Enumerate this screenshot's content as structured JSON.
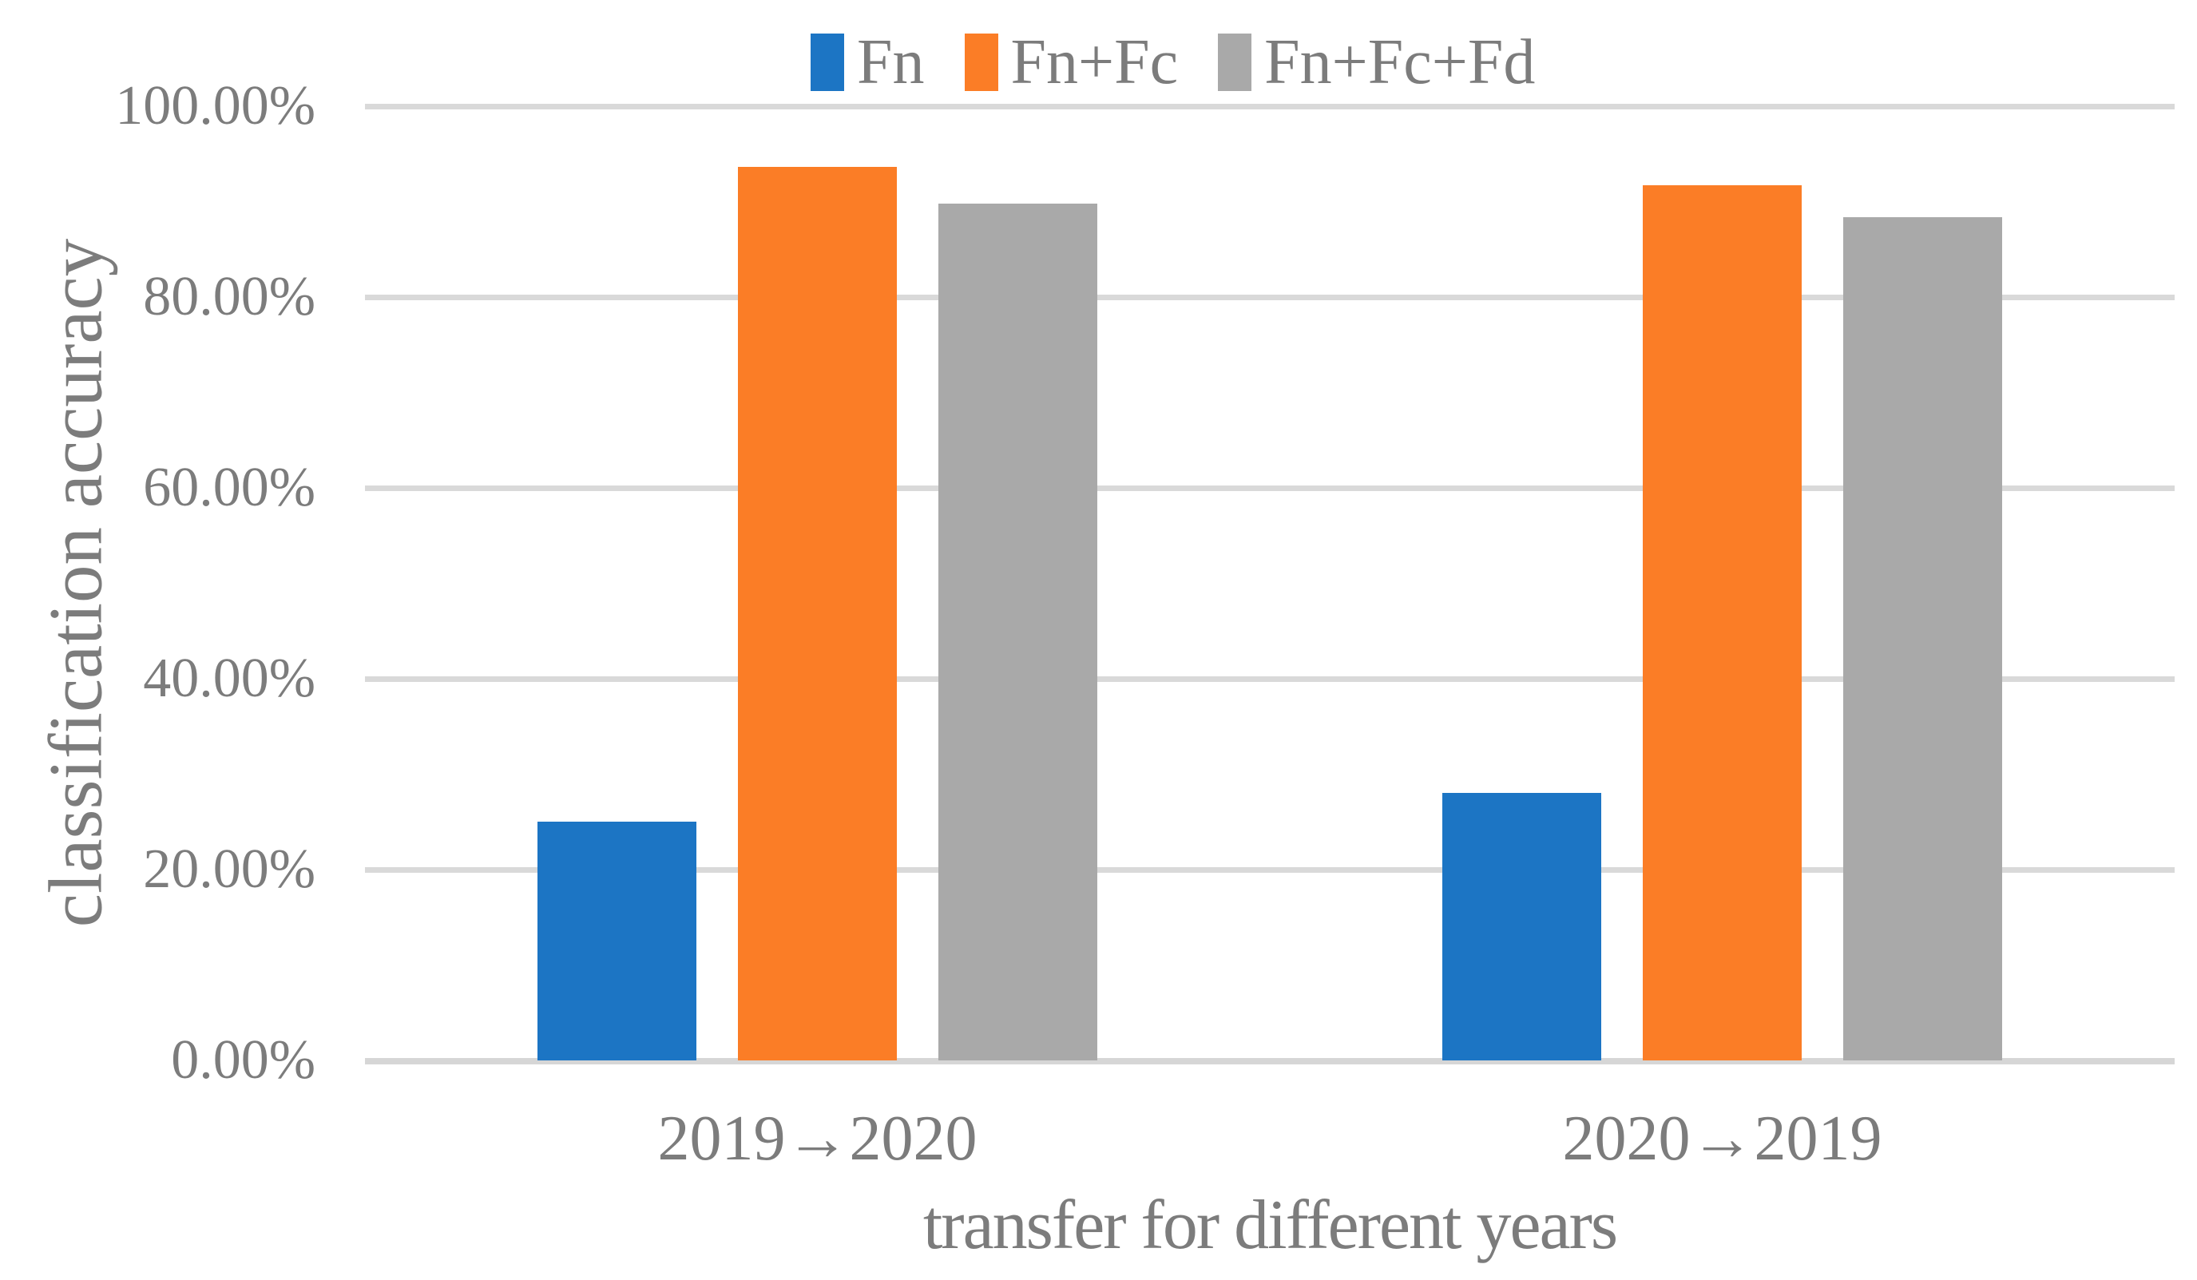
{
  "chart_data": {
    "type": "bar",
    "title": "",
    "categories": [
      "2019→2020",
      "2020→2019"
    ],
    "series": [
      {
        "name": "Fn",
        "color": "#1c75c4",
        "values": [
          25.0,
          28.0
        ]
      },
      {
        "name": "Fn+Fc",
        "color": "#fb7d26",
        "values": [
          93.6,
          91.7
        ]
      },
      {
        "name": "Fn+Fc+Fd",
        "color": "#a9a9a9",
        "values": [
          89.8,
          88.4
        ]
      }
    ],
    "xlabel": "transfer for different years",
    "ylabel": "classification accuracy",
    "ylim": [
      0,
      100
    ],
    "ytick_step": 20,
    "yticks": [
      {
        "value": 100,
        "label": "100.00%"
      },
      {
        "value": 80,
        "label": "80.00%"
      },
      {
        "value": 60,
        "label": "60.00%"
      },
      {
        "value": 40,
        "label": "40.00%"
      },
      {
        "value": 20,
        "label": "20.00%"
      },
      {
        "value": 0,
        "label": "0.00%"
      }
    ],
    "grid": true,
    "legend_position": "top-center"
  },
  "colors": {
    "gridline": "#d9d9d9",
    "axis_line": "#d6d6d6",
    "text": "#7c7c7c",
    "background": "#ffffff"
  }
}
